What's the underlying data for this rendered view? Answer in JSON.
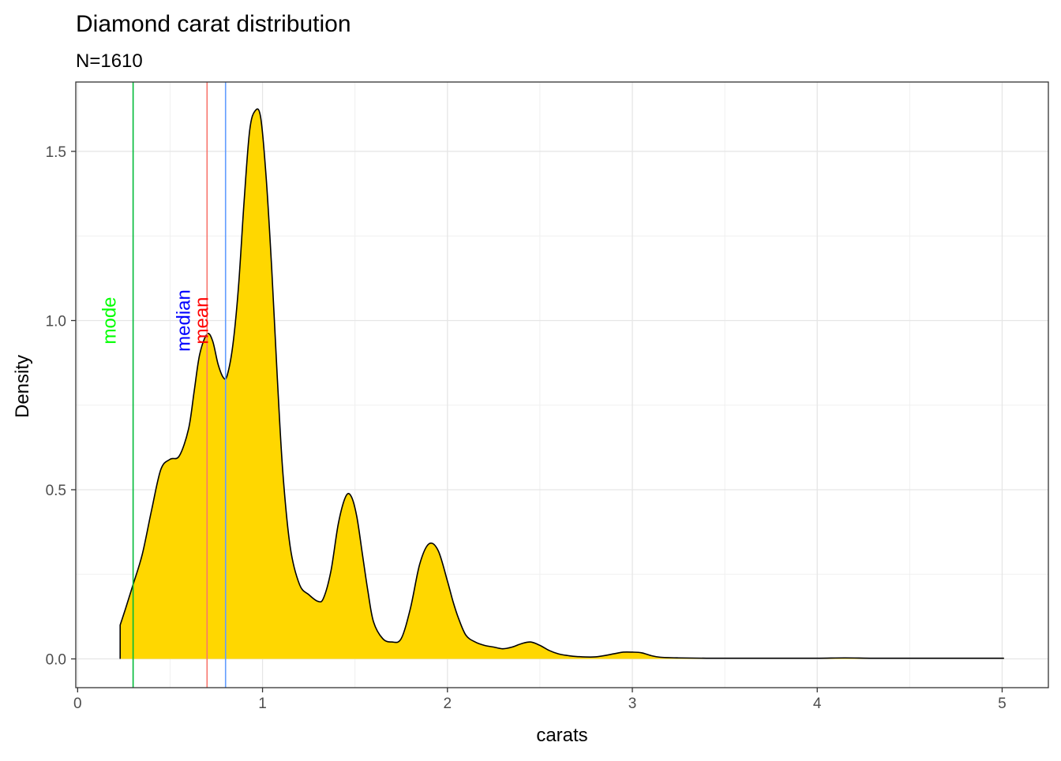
{
  "chart_data": {
    "type": "area",
    "title": "Diamond carat distribution",
    "subtitle": "N=1610",
    "xlabel": "carats",
    "ylabel": "Density",
    "xlim": [
      -0.01,
      5.25
    ],
    "ylim": [
      -0.085,
      1.705
    ],
    "x_ticks": [
      0,
      1,
      2,
      3,
      4,
      5
    ],
    "x_tick_labels": [
      "0",
      "1",
      "2",
      "3",
      "4",
      "5"
    ],
    "y_ticks": [
      0.0,
      0.5,
      1.0,
      1.5
    ],
    "y_tick_labels": [
      "0.0",
      "0.5",
      "1.0",
      "1.5"
    ],
    "grid": true,
    "fill_color": "#FFD700",
    "line_color": "#000000",
    "density": {
      "x": [
        0.23,
        0.26,
        0.3,
        0.35,
        0.4,
        0.45,
        0.5,
        0.55,
        0.6,
        0.63,
        0.66,
        0.7,
        0.73,
        0.76,
        0.79,
        0.81,
        0.84,
        0.87,
        0.9,
        0.93,
        0.96,
        0.99,
        1.02,
        1.05,
        1.08,
        1.11,
        1.15,
        1.2,
        1.25,
        1.3,
        1.33,
        1.37,
        1.41,
        1.45,
        1.48,
        1.51,
        1.54,
        1.57,
        1.6,
        1.65,
        1.7,
        1.75,
        1.8,
        1.85,
        1.9,
        1.95,
        2.0,
        2.03,
        2.06,
        2.1,
        2.15,
        2.2,
        2.25,
        2.3,
        2.35,
        2.4,
        2.45,
        2.5,
        2.55,
        2.6,
        2.65,
        2.7,
        2.8,
        2.9,
        2.95,
        3.0,
        3.05,
        3.1,
        3.15,
        3.25,
        3.4,
        3.6,
        3.8,
        4.0,
        4.15,
        4.3,
        4.5,
        4.7,
        5.01
      ],
      "y": [
        0.1,
        0.15,
        0.22,
        0.31,
        0.44,
        0.56,
        0.59,
        0.6,
        0.68,
        0.79,
        0.9,
        0.96,
        0.94,
        0.87,
        0.83,
        0.84,
        0.93,
        1.1,
        1.35,
        1.56,
        1.62,
        1.6,
        1.42,
        1.15,
        0.83,
        0.55,
        0.33,
        0.22,
        0.19,
        0.17,
        0.18,
        0.26,
        0.4,
        0.48,
        0.48,
        0.42,
        0.31,
        0.2,
        0.11,
        0.06,
        0.05,
        0.06,
        0.15,
        0.28,
        0.34,
        0.32,
        0.23,
        0.17,
        0.12,
        0.07,
        0.05,
        0.04,
        0.035,
        0.03,
        0.035,
        0.045,
        0.05,
        0.04,
        0.025,
        0.015,
        0.01,
        0.007,
        0.006,
        0.015,
        0.02,
        0.02,
        0.018,
        0.01,
        0.005,
        0.003,
        0.002,
        0.002,
        0.002,
        0.002,
        0.003,
        0.002,
        0.002,
        0.002,
        0.002
      ]
    },
    "reference_lines": [
      {
        "label": "mode",
        "x": 0.3,
        "color": "#00BA38",
        "label_color": "#00FF00",
        "label_y": 1.0
      },
      {
        "label": "median",
        "x": 0.7,
        "color": "#F8766D",
        "label_color": "#0000FF",
        "label_y": 1.0
      },
      {
        "label": "mean",
        "x": 0.8,
        "color": "#619CFF",
        "label_color": "#FF0000",
        "label_y": 1.0
      }
    ]
  }
}
